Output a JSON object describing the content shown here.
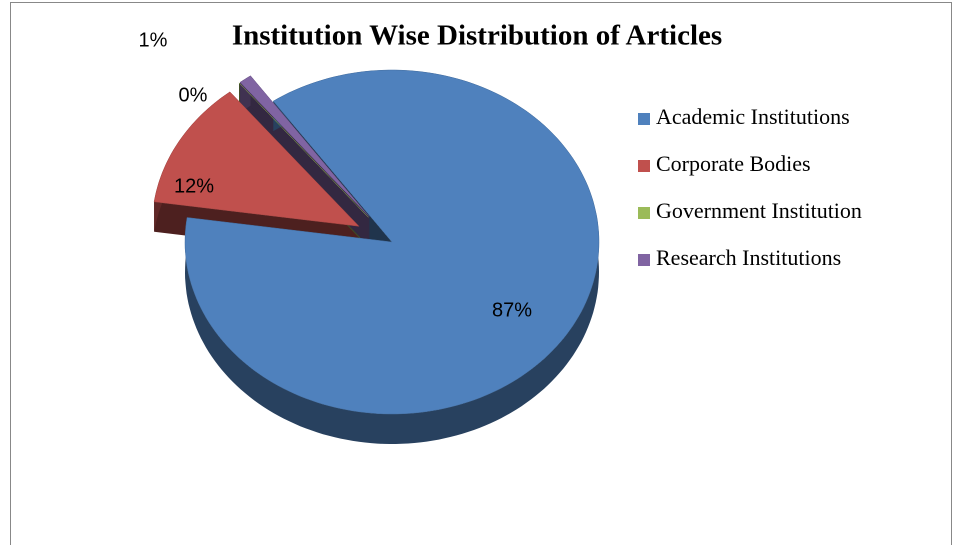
{
  "chart_data": {
    "type": "pie3d",
    "title": "Institution Wise Distribution of Articles",
    "categories": [
      "Academic  Institutions",
      "Corporate Bodies",
      "Government Institution",
      "Research  Institutions"
    ],
    "values": [
      87,
      12,
      0,
      1
    ],
    "value_labels": [
      "87%",
      "12%",
      "0%",
      "1%"
    ],
    "colors": [
      "#4f81bd",
      "#c0504d",
      "#9bbb59",
      "#8064a2"
    ],
    "legend": "right"
  }
}
